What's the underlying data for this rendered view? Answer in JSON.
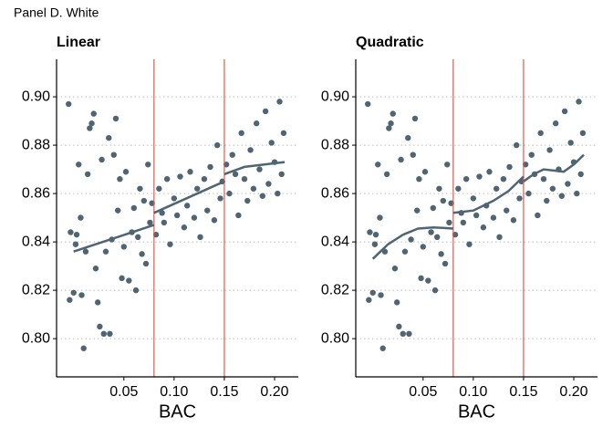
{
  "title": "Panel D. White",
  "chart_data": [
    {
      "type": "scatter",
      "title": "Linear",
      "xlabel": "BAC",
      "color": "#4f6573",
      "x": [
        -0.005,
        -0.003,
        -0.004,
        0.0,
        0.002,
        0.003,
        0.005,
        0.007,
        0.008,
        0.01,
        0.012,
        0.014,
        0.016,
        0.018,
        0.02,
        0.022,
        0.024,
        0.026,
        0.028,
        0.03,
        0.032,
        0.035,
        0.036,
        0.038,
        0.04,
        0.042,
        0.044,
        0.046,
        0.048,
        0.05,
        0.052,
        0.055,
        0.058,
        0.06,
        0.062,
        0.064,
        0.066,
        0.068,
        0.07,
        0.072,
        0.074,
        0.076,
        0.078,
        0.082,
        0.085,
        0.088,
        0.09,
        0.093,
        0.096,
        0.1,
        0.103,
        0.106,
        0.11,
        0.113,
        0.116,
        0.12,
        0.123,
        0.126,
        0.13,
        0.133,
        0.136,
        0.14,
        0.143,
        0.146,
        0.148,
        0.152,
        0.155,
        0.158,
        0.161,
        0.164,
        0.167,
        0.17,
        0.173,
        0.176,
        0.179,
        0.182,
        0.185,
        0.188,
        0.191,
        0.194,
        0.197,
        0.2,
        0.203,
        0.205,
        0.207,
        0.209
      ],
      "values": [
        0.897,
        0.844,
        0.816,
        0.819,
        0.839,
        0.843,
        0.872,
        0.85,
        0.818,
        0.796,
        0.836,
        0.868,
        0.887,
        0.889,
        0.893,
        0.829,
        0.815,
        0.805,
        0.874,
        0.802,
        0.836,
        0.883,
        0.802,
        0.841,
        0.876,
        0.891,
        0.853,
        0.866,
        0.825,
        0.838,
        0.869,
        0.824,
        0.844,
        0.854,
        0.82,
        0.842,
        0.862,
        0.835,
        0.857,
        0.831,
        0.872,
        0.848,
        0.856,
        0.843,
        0.862,
        0.852,
        0.848,
        0.866,
        0.839,
        0.858,
        0.851,
        0.867,
        0.846,
        0.855,
        0.869,
        0.85,
        0.862,
        0.842,
        0.866,
        0.853,
        0.871,
        0.849,
        0.88,
        0.858,
        0.865,
        0.872,
        0.86,
        0.876,
        0.868,
        0.851,
        0.885,
        0.866,
        0.857,
        0.878,
        0.862,
        0.889,
        0.87,
        0.859,
        0.894,
        0.864,
        0.881,
        0.873,
        0.86,
        0.898,
        0.868,
        0.885
      ],
      "fit": {
        "x": [
          0.0,
          0.08,
          null,
          0.08,
          0.15,
          null,
          0.15,
          0.17,
          0.19,
          0.21
        ],
        "values": [
          0.836,
          0.847,
          null,
          0.852,
          0.865,
          null,
          0.868,
          0.871,
          0.872,
          0.873
        ]
      },
      "vlines": [
        0.08,
        0.15
      ],
      "vline_color": "#e8574d",
      "grid": true,
      "xlim": [
        -0.017,
        0.2236
      ],
      "ylim": [
        0.7842,
        0.9155
      ],
      "xticks": [
        0.05,
        {
          "value": 0.1,
          "label": "0.10"
        },
        0.15,
        {
          "value": 0.2,
          "label": "0.20"
        }
      ],
      "yticks": [
        {
          "value": 0.8,
          "label": "0.80"
        },
        0.82,
        0.84,
        0.86,
        0.88,
        {
          "value": 0.9,
          "label": "0.90"
        }
      ]
    },
    {
      "type": "scatter",
      "title": "Quadratic",
      "xlabel": "BAC",
      "color": "#4f6573",
      "x": [
        -0.005,
        -0.003,
        -0.004,
        0.0,
        0.002,
        0.003,
        0.005,
        0.007,
        0.008,
        0.01,
        0.012,
        0.014,
        0.016,
        0.018,
        0.02,
        0.022,
        0.024,
        0.026,
        0.028,
        0.03,
        0.032,
        0.035,
        0.036,
        0.038,
        0.04,
        0.042,
        0.044,
        0.046,
        0.048,
        0.05,
        0.052,
        0.055,
        0.058,
        0.06,
        0.062,
        0.064,
        0.066,
        0.068,
        0.07,
        0.072,
        0.074,
        0.076,
        0.078,
        0.082,
        0.085,
        0.088,
        0.09,
        0.093,
        0.096,
        0.1,
        0.103,
        0.106,
        0.11,
        0.113,
        0.116,
        0.12,
        0.123,
        0.126,
        0.13,
        0.133,
        0.136,
        0.14,
        0.143,
        0.146,
        0.148,
        0.152,
        0.155,
        0.158,
        0.161,
        0.164,
        0.167,
        0.17,
        0.173,
        0.176,
        0.179,
        0.182,
        0.185,
        0.188,
        0.191,
        0.194,
        0.197,
        0.2,
        0.203,
        0.205,
        0.207,
        0.209
      ],
      "values": [
        0.897,
        0.844,
        0.816,
        0.819,
        0.839,
        0.843,
        0.872,
        0.85,
        0.818,
        0.796,
        0.836,
        0.868,
        0.887,
        0.889,
        0.893,
        0.829,
        0.815,
        0.805,
        0.874,
        0.802,
        0.836,
        0.883,
        0.802,
        0.841,
        0.876,
        0.891,
        0.853,
        0.866,
        0.825,
        0.838,
        0.869,
        0.824,
        0.844,
        0.854,
        0.82,
        0.842,
        0.862,
        0.835,
        0.857,
        0.831,
        0.872,
        0.848,
        0.856,
        0.843,
        0.862,
        0.852,
        0.848,
        0.866,
        0.839,
        0.858,
        0.851,
        0.867,
        0.846,
        0.855,
        0.869,
        0.85,
        0.862,
        0.842,
        0.866,
        0.853,
        0.871,
        0.849,
        0.88,
        0.858,
        0.865,
        0.872,
        0.86,
        0.876,
        0.868,
        0.851,
        0.885,
        0.866,
        0.857,
        0.878,
        0.862,
        0.889,
        0.87,
        0.859,
        0.894,
        0.864,
        0.881,
        0.873,
        0.86,
        0.898,
        0.868,
        0.885
      ],
      "fit": {
        "x": [
          0.0,
          0.015,
          0.03,
          0.045,
          0.06,
          0.07,
          0.08,
          null,
          0.08,
          0.1,
          0.12,
          0.135,
          0.15,
          null,
          0.15,
          0.16,
          0.17,
          0.18,
          0.19,
          0.2,
          0.21
        ],
        "values": [
          0.833,
          0.839,
          0.843,
          0.8455,
          0.846,
          0.8458,
          0.8455,
          null,
          0.852,
          0.853,
          0.857,
          0.861,
          0.867,
          null,
          0.865,
          0.868,
          0.87,
          0.8695,
          0.869,
          0.872,
          0.876
        ]
      },
      "vlines": [
        0.08,
        0.15
      ],
      "vline_color": "#e8574d",
      "grid": true,
      "xlim": [
        -0.017,
        0.2236
      ],
      "ylim": [
        0.7842,
        0.9155
      ],
      "xticks": [
        0.05,
        {
          "value": 0.1,
          "label": "0.10"
        },
        0.15,
        {
          "value": 0.2,
          "label": "0.20"
        }
      ],
      "yticks": [
        {
          "value": 0.8,
          "label": "0.80"
        },
        0.82,
        0.84,
        0.86,
        0.88,
        {
          "value": 0.9,
          "label": "0.90"
        }
      ]
    }
  ]
}
